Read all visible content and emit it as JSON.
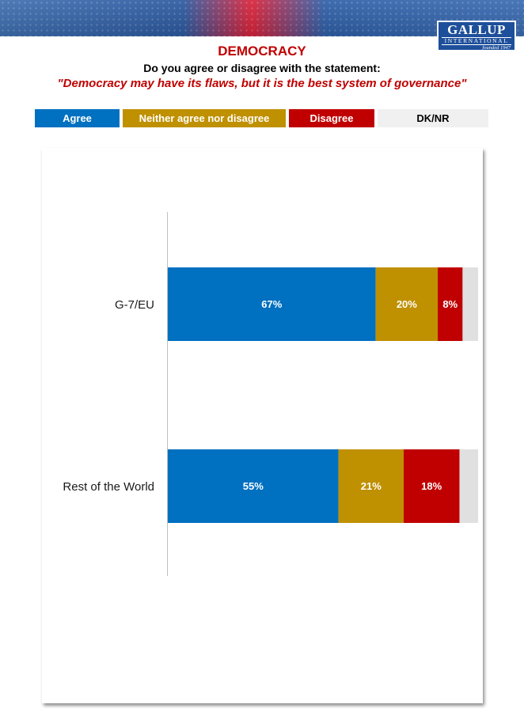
{
  "header": {
    "brand_line1": "GALLUP",
    "brand_line2": "INTERNATIONAL",
    "brand_line3": "founded 1947"
  },
  "title": "DEMOCRACY",
  "question": "Do you agree or disagree with the statement:",
  "statement": "\"Democracy may have its flaws, but it is the best system of governance\"",
  "colors": {
    "agree": "#0070c0",
    "neither": "#bf9000",
    "disagree": "#c00000",
    "dknr": "#e0e0e0"
  },
  "legend": [
    {
      "label": "Agree",
      "color": "#0070c0",
      "text_color": "#ffffff"
    },
    {
      "label": "Neither agree nor disagree",
      "color": "#bf9000",
      "text_color": "#ffffff"
    },
    {
      "label": "Disagree",
      "color": "#c00000",
      "text_color": "#ffffff"
    },
    {
      "label": "DK/NR",
      "color": "#f0f0f0",
      "text_color": "#000000"
    }
  ],
  "chart_data": {
    "type": "bar",
    "orientation": "horizontal",
    "stacked": true,
    "categories": [
      "G-7/EU",
      "Rest of the World"
    ],
    "series": [
      {
        "name": "Agree",
        "values": [
          67,
          55
        ],
        "labels": [
          "67%",
          "55%"
        ]
      },
      {
        "name": "Neither agree nor disagree",
        "values": [
          20,
          21
        ],
        "labels": [
          "20%",
          "21%"
        ]
      },
      {
        "name": "Disagree",
        "values": [
          8,
          18
        ],
        "labels": [
          "8%",
          "18%"
        ]
      },
      {
        "name": "DK/NR",
        "values": [
          5,
          6
        ],
        "labels": [
          "",
          ""
        ]
      }
    ],
    "xlim": [
      0,
      100
    ],
    "grid": false,
    "legend_position": "top"
  }
}
